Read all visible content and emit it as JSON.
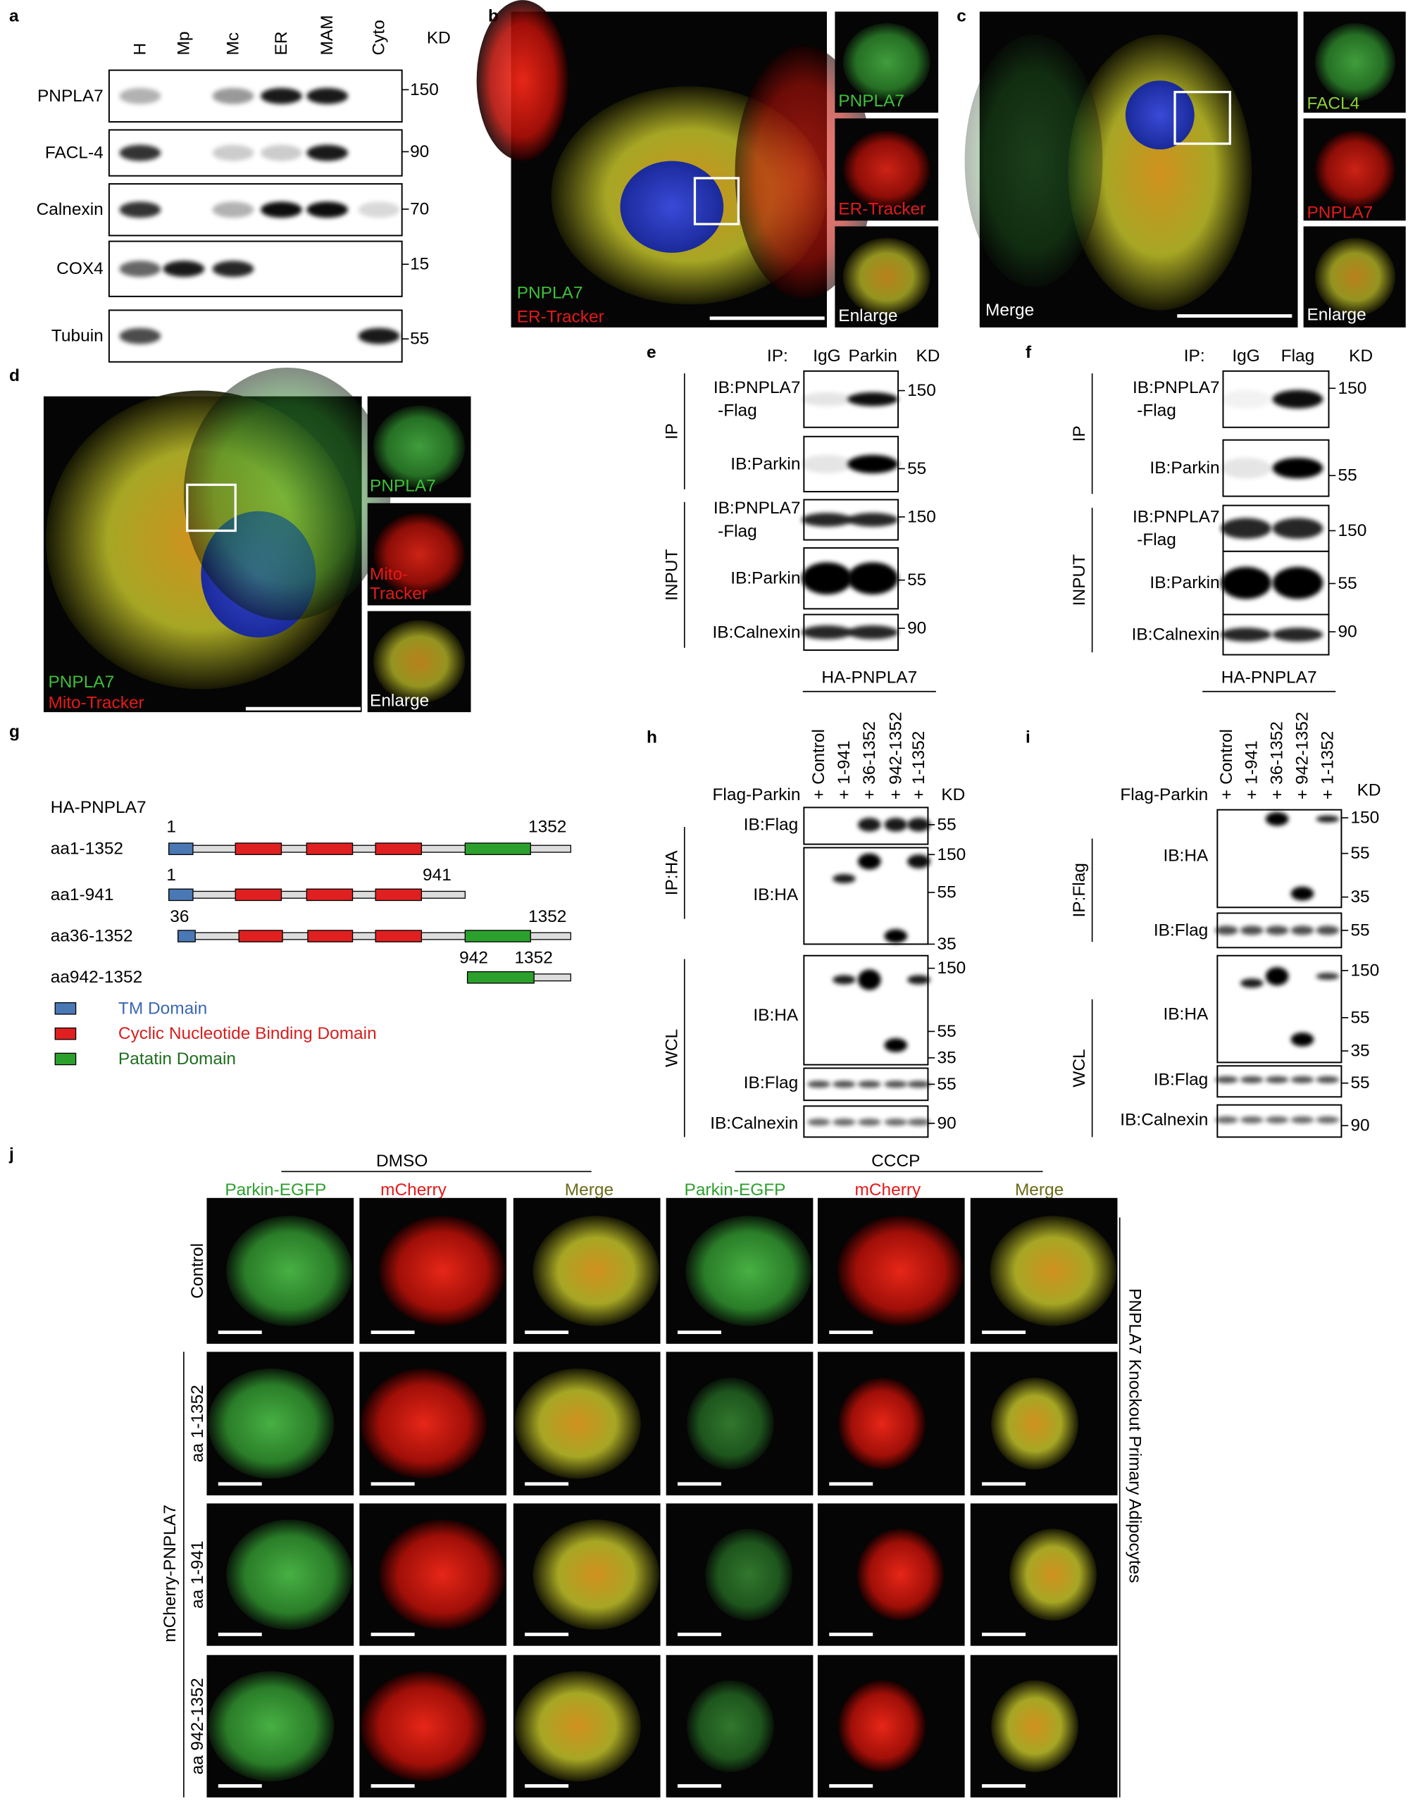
{
  "panels": {
    "a": {
      "label": "a",
      "lanes": [
        "H",
        "Mp",
        "Mc",
        "ER",
        "MAM",
        "Cyto"
      ],
      "kd_header": "KD",
      "rows": [
        {
          "name": "PNPLA7",
          "kd": "150"
        },
        {
          "name": "FACL-4",
          "kd": "90"
        },
        {
          "name": "Calnexin",
          "kd": "70"
        },
        {
          "name": "COX4",
          "kd": "15"
        },
        {
          "name": "Tubuin",
          "kd": "55"
        }
      ]
    },
    "b": {
      "label": "b",
      "channels": [
        "PNPLA7",
        "ER-Tracker",
        "Enlarge"
      ],
      "legend": [
        "PNPLA7",
        "ER-Tracker"
      ]
    },
    "c": {
      "label": "c",
      "merge": "Merge",
      "channels": [
        "FACL4",
        "PNPLA7",
        "Enlarge"
      ]
    },
    "d": {
      "label": "d",
      "channels": [
        [
          "PNPLA7"
        ],
        [
          "Mito-",
          "Tracker"
        ],
        [
          "Enlarge"
        ]
      ],
      "legend": [
        "PNPLA7",
        "Mito-Tracker"
      ]
    },
    "e": {
      "label": "e",
      "ip": "IP:",
      "lanes": [
        "IgG",
        "Parkin"
      ],
      "kd_header": "KD",
      "groups": [
        {
          "name": "IP",
          "rows": [
            {
              "label": [
                "IB:PNPLA7",
                "-Flag"
              ],
              "kd": [
                "150"
              ]
            },
            {
              "label": [
                "IB:Parkin"
              ],
              "kd": [
                "55"
              ]
            }
          ]
        },
        {
          "name": "INPUT",
          "rows": [
            {
              "label": [
                "IB:PNPLA7",
                "-Flag"
              ],
              "kd": [
                "150"
              ]
            },
            {
              "label": [
                "IB:Parkin"
              ],
              "kd": [
                "55"
              ]
            },
            {
              "label": [
                "IB:Calnexin"
              ],
              "kd": [
                "90"
              ]
            }
          ]
        }
      ]
    },
    "f": {
      "label": "f",
      "ip": "IP:",
      "lanes": [
        "IgG",
        "Flag"
      ],
      "kd_header": "KD",
      "groups": [
        {
          "name": "IP",
          "rows": [
            {
              "label": [
                "IB:PNPLA7",
                "-Flag"
              ],
              "kd": [
                "150"
              ]
            },
            {
              "label": [
                "IB:Parkin"
              ],
              "kd": [
                "55"
              ]
            }
          ]
        },
        {
          "name": "INPUT",
          "rows": [
            {
              "label": [
                "IB:PNPLA7",
                "-Flag"
              ],
              "kd": [
                "150"
              ]
            },
            {
              "label": [
                "IB:Parkin"
              ],
              "kd": [
                "55"
              ]
            },
            {
              "label": [
                "IB:Calnexin"
              ],
              "kd": [
                "90"
              ]
            }
          ]
        }
      ]
    },
    "g": {
      "label": "g",
      "title": "HA-PNPLA7",
      "constructs": [
        {
          "name": "aa1-1352",
          "start": "1",
          "end": "1352"
        },
        {
          "name": "aa1-941",
          "start": "1",
          "end": "941"
        },
        {
          "name": "aa36-1352",
          "start": "36",
          "end": "1352"
        },
        {
          "name": "aa942-1352",
          "start": "942",
          "end": "1352"
        }
      ],
      "legend": [
        "TM Domain",
        "Cyclic Nucleotide Binding Domain",
        "Patatin Domain"
      ]
    },
    "h": {
      "label": "h",
      "header": "HA-PNPLA7",
      "lanes": [
        "Control",
        "1-941",
        "36-1352",
        "942-1352",
        "1-1352"
      ],
      "transfection": "Flag-Parkin",
      "plus": [
        "+",
        "+",
        "+",
        "+",
        "+"
      ],
      "kd_header": "KD",
      "groups": [
        {
          "name": "IP:HA",
          "rows": [
            {
              "label": "IB:Flag",
              "kd": [
                "55"
              ]
            },
            {
              "label": "IB:HA",
              "kd": [
                "150",
                "55",
                "35"
              ]
            }
          ]
        },
        {
          "name": "WCL",
          "rows": [
            {
              "label": "IB:HA",
              "kd": [
                "150",
                "55",
                "35"
              ]
            },
            {
              "label": "IB:Flag",
              "kd": [
                "55"
              ]
            },
            {
              "label": "IB:Calnexin",
              "kd": [
                "90"
              ]
            }
          ]
        }
      ]
    },
    "i": {
      "label": "i",
      "header": "HA-PNPLA7",
      "lanes": [
        "Control",
        "1-941",
        "36-1352",
        "942-1352",
        "1-1352"
      ],
      "transfection": "Flag-Parkin",
      "plus": [
        "+",
        "+",
        "+",
        "+",
        "+"
      ],
      "kd_header": "KD",
      "groups": [
        {
          "name": "IP:Flag",
          "rows": [
            {
              "label": "IB:HA",
              "kd": [
                "150",
                "55",
                "35"
              ]
            },
            {
              "label": "IB:Flag",
              "kd": [
                "55"
              ]
            }
          ]
        },
        {
          "name": "WCL",
          "rows": [
            {
              "label": "IB:HA",
              "kd": [
                "150",
                "55",
                "35"
              ]
            },
            {
              "label": "IB:Flag",
              "kd": [
                "55"
              ]
            },
            {
              "label": "IB:Calnexin",
              "kd": [
                "90"
              ]
            }
          ]
        }
      ]
    },
    "j": {
      "label": "j",
      "treatments": [
        "DMSO",
        "CCCP"
      ],
      "columns": [
        "Parkin-EGFP",
        "mCherry",
        "Merge"
      ],
      "rows": [
        "Control",
        "aa 1-1352",
        "aa 1-941",
        "aa 942-1352"
      ],
      "group": "mCherry-PNPLA7",
      "side": "PNPLA7 Knockout Primary Adipocytes"
    }
  }
}
